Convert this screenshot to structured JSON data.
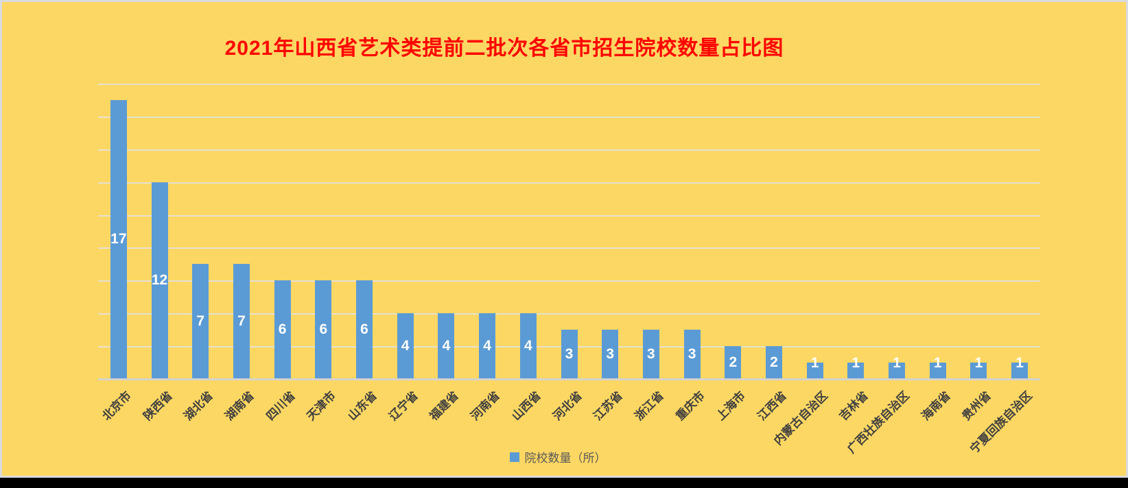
{
  "title": "2021年山西省艺术类提前二批次各省市招生院校数量占比图",
  "legend": {
    "label": "院校数量（所）"
  },
  "colors": {
    "background": "#FCD763",
    "bar": "#5B9BD5",
    "title": "#FF0000",
    "axis_label": "#3F3F3F",
    "data_label": "#FFFFFF",
    "gridline": "#E6E1D0",
    "axis_line": "#D5D3CE",
    "panel_border": "#DADADA",
    "legend_text": "#595959",
    "letterbox": "#000000"
  },
  "chart_data": {
    "type": "bar",
    "title": "2021年山西省艺术类提前二批次各省市招生院校数量占比图",
    "series_name": "院校数量（所）",
    "categories": [
      "北京市",
      "陕西省",
      "湖北省",
      "湖南省",
      "四川省",
      "天津市",
      "山东省",
      "辽宁省",
      "福建省",
      "河南省",
      "山西省",
      "河北省",
      "江苏省",
      "浙江省",
      "重庆市",
      "上海市",
      "江西省",
      "内蒙古自治区",
      "吉林省",
      "广西壮族自治区",
      "海南省",
      "贵州省",
      "宁夏回族自治区"
    ],
    "values": [
      17,
      12,
      7,
      7,
      6,
      6,
      6,
      4,
      4,
      4,
      4,
      3,
      3,
      3,
      3,
      2,
      2,
      1,
      1,
      1,
      1,
      1,
      1
    ],
    "xlabel": "",
    "ylabel": "",
    "ylim": [
      0,
      18
    ],
    "grid_major_unit": 2,
    "gridlines": true,
    "y_tick_labels_visible": false,
    "x_tick_rotation_deg": 45,
    "data_labels": "inside-center",
    "legend_position": "bottom"
  }
}
